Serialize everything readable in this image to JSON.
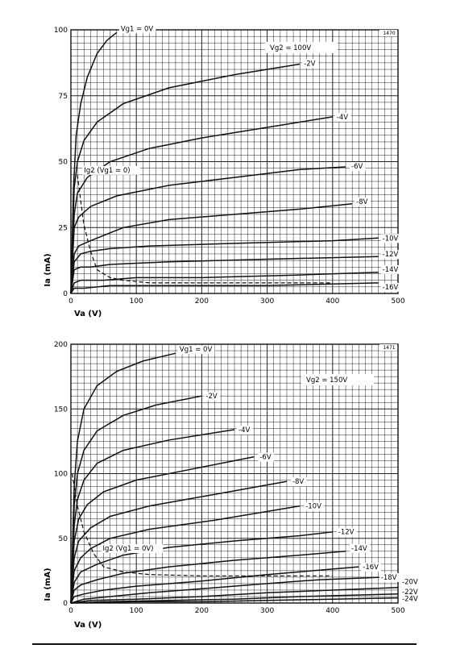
{
  "chart_data": [
    {
      "type": "line",
      "figure_number": "1470",
      "xlabel": "Va (V)",
      "ylabel": "Ia (mA)",
      "xlim": [
        0,
        500
      ],
      "ylim": [
        0,
        100
      ],
      "x_ticks": [
        0,
        100,
        200,
        300,
        400,
        500
      ],
      "y_ticks": [
        0,
        25,
        50,
        75,
        100
      ],
      "grid": true,
      "annotation_condition": "Vg2 = 100V",
      "series": [
        {
          "name": "Vg1 = 0V",
          "label": "Vg1 = 0V",
          "dashed": false,
          "points": [
            [
              0,
              0
            ],
            [
              4,
              40
            ],
            [
              8,
              60
            ],
            [
              15,
              72
            ],
            [
              25,
              82
            ],
            [
              40,
              91
            ],
            [
              55,
              96
            ],
            [
              70,
              99
            ]
          ]
        },
        {
          "name": "-2V",
          "label": "-2V",
          "dashed": false,
          "points": [
            [
              0,
              0
            ],
            [
              5,
              40
            ],
            [
              10,
              50
            ],
            [
              20,
              58
            ],
            [
              40,
              65
            ],
            [
              80,
              72
            ],
            [
              150,
              78
            ],
            [
              250,
              83
            ],
            [
              350,
              87
            ]
          ]
        },
        {
          "name": "-4V",
          "label": "-4V",
          "dashed": false,
          "points": [
            [
              0,
              0
            ],
            [
              5,
              30
            ],
            [
              10,
              38
            ],
            [
              25,
              44
            ],
            [
              60,
              50
            ],
            [
              120,
              55
            ],
            [
              200,
              59
            ],
            [
              300,
              63
            ],
            [
              400,
              67
            ]
          ]
        },
        {
          "name": "-6V",
          "label": "-6V",
          "dashed": false,
          "points": [
            [
              0,
              0
            ],
            [
              5,
              25
            ],
            [
              12,
              29
            ],
            [
              30,
              33
            ],
            [
              70,
              37
            ],
            [
              150,
              41
            ],
            [
              250,
              44
            ],
            [
              350,
              47
            ],
            [
              420,
              48
            ]
          ]
        },
        {
          "name": "-8V",
          "label": "-8V",
          "dashed": false,
          "points": [
            [
              0,
              0
            ],
            [
              5,
              15
            ],
            [
              12,
              18
            ],
            [
              30,
              20
            ],
            [
              80,
              25
            ],
            [
              150,
              28
            ],
            [
              250,
              30
            ],
            [
              350,
              32
            ],
            [
              430,
              34
            ]
          ]
        },
        {
          "name": "-10V",
          "label": "-10V",
          "dashed": false,
          "points": [
            [
              0,
              0
            ],
            [
              5,
              12
            ],
            [
              15,
              15
            ],
            [
              30,
              16
            ],
            [
              60,
              17
            ],
            [
              120,
              18
            ],
            [
              250,
              19
            ],
            [
              400,
              20
            ],
            [
              470,
              21
            ]
          ]
        },
        {
          "name": "-12V",
          "label": "-12V",
          "dashed": false,
          "points": [
            [
              0,
              0
            ],
            [
              5,
              9
            ],
            [
              15,
              10
            ],
            [
              30,
              10
            ],
            [
              60,
              11
            ],
            [
              150,
              12
            ],
            [
              300,
              13
            ],
            [
              470,
              14
            ]
          ]
        },
        {
          "name": "-14V",
          "label": "-14V",
          "dashed": false,
          "points": [
            [
              0,
              0
            ],
            [
              5,
              4
            ],
            [
              15,
              5
            ],
            [
              50,
              5
            ],
            [
              100,
              6
            ],
            [
              200,
              6
            ],
            [
              350,
              7
            ],
            [
              470,
              8
            ]
          ]
        },
        {
          "name": "-16V",
          "label": "-16V",
          "dashed": false,
          "points": [
            [
              0,
              0
            ],
            [
              5,
              2
            ],
            [
              20,
              2
            ],
            [
              60,
              3
            ],
            [
              150,
              3
            ],
            [
              300,
              3
            ],
            [
              470,
              4
            ]
          ]
        },
        {
          "name": "Ig2 (Vg1 = 0)",
          "label": "Ig2 (Vg1 = 0)",
          "dashed": true,
          "points": [
            [
              10,
              45
            ],
            [
              15,
              35
            ],
            [
              20,
              26
            ],
            [
              30,
              16
            ],
            [
              40,
              9
            ],
            [
              60,
              6
            ],
            [
              80,
              5
            ],
            [
              120,
              4
            ],
            [
              200,
              4
            ],
            [
              300,
              4
            ],
            [
              400,
              4
            ]
          ]
        }
      ]
    },
    {
      "type": "line",
      "figure_number": "1471",
      "xlabel": "Va (V)",
      "ylabel": "Ia (mA)",
      "xlim": [
        0,
        500
      ],
      "ylim": [
        0,
        200
      ],
      "x_ticks": [
        0,
        100,
        200,
        300,
        400,
        500
      ],
      "y_ticks": [
        0,
        50,
        100,
        150,
        200
      ],
      "grid": true,
      "annotation_condition": "Vg2 = 150V",
      "series": [
        {
          "name": "Vg1 = 0V",
          "label": "Vg1 = 0V",
          "dashed": false,
          "points": [
            [
              0,
              0
            ],
            [
              5,
              90
            ],
            [
              10,
              125
            ],
            [
              20,
              150
            ],
            [
              40,
              168
            ],
            [
              70,
              179
            ],
            [
              110,
              187
            ],
            [
              160,
              193
            ]
          ]
        },
        {
          "name": "-2V",
          "label": "-2V",
          "dashed": false,
          "points": [
            [
              0,
              0
            ],
            [
              5,
              75
            ],
            [
              10,
              100
            ],
            [
              20,
              118
            ],
            [
              40,
              133
            ],
            [
              80,
              145
            ],
            [
              130,
              153
            ],
            [
              200,
              160
            ]
          ]
        },
        {
          "name": "-4V",
          "label": "-4V",
          "dashed": false,
          "points": [
            [
              0,
              0
            ],
            [
              5,
              60
            ],
            [
              10,
              80
            ],
            [
              20,
              95
            ],
            [
              40,
              108
            ],
            [
              80,
              118
            ],
            [
              150,
              126
            ],
            [
              250,
              134
            ]
          ]
        },
        {
          "name": "-6V",
          "label": "-6V",
          "dashed": false,
          "points": [
            [
              0,
              0
            ],
            [
              5,
              48
            ],
            [
              12,
              65
            ],
            [
              25,
              76
            ],
            [
              50,
              86
            ],
            [
              100,
              95
            ],
            [
              180,
              103
            ],
            [
              280,
              113
            ]
          ]
        },
        {
          "name": "-8V",
          "label": "-8V",
          "dashed": false,
          "points": [
            [
              0,
              0
            ],
            [
              5,
              35
            ],
            [
              12,
              48
            ],
            [
              30,
              58
            ],
            [
              60,
              67
            ],
            [
              120,
              75
            ],
            [
              220,
              84
            ],
            [
              330,
              94
            ]
          ]
        },
        {
          "name": "-10V",
          "label": "-10V",
          "dashed": false,
          "points": [
            [
              0,
              0
            ],
            [
              5,
              25
            ],
            [
              15,
              35
            ],
            [
              30,
              42
            ],
            [
              60,
              50
            ],
            [
              120,
              57
            ],
            [
              220,
              64
            ],
            [
              350,
              75
            ]
          ]
        },
        {
          "name": "-12V",
          "label": "-12V",
          "dashed": false,
          "points": [
            [
              0,
              0
            ],
            [
              5,
              16
            ],
            [
              15,
              24
            ],
            [
              40,
              30
            ],
            [
              80,
              37
            ],
            [
              150,
              43
            ],
            [
              250,
              48
            ],
            [
              350,
              52
            ],
            [
              400,
              55
            ]
          ]
        },
        {
          "name": "-14V",
          "label": "-14V",
          "dashed": false,
          "points": [
            [
              0,
              0
            ],
            [
              5,
              10
            ],
            [
              15,
              14
            ],
            [
              40,
              18
            ],
            [
              80,
              23
            ],
            [
              150,
              28
            ],
            [
              250,
              33
            ],
            [
              350,
              37
            ],
            [
              420,
              40
            ]
          ]
        },
        {
          "name": "-16V",
          "label": "-16V",
          "dashed": false,
          "points": [
            [
              0,
              0
            ],
            [
              5,
              5
            ],
            [
              20,
              7
            ],
            [
              50,
              10
            ],
            [
              100,
              13
            ],
            [
              200,
              17
            ],
            [
              300,
              22
            ],
            [
              440,
              28
            ]
          ]
        },
        {
          "name": "-18V",
          "label": "-18V",
          "dashed": false,
          "points": [
            [
              0,
              0
            ],
            [
              20,
              3
            ],
            [
              60,
              5
            ],
            [
              120,
              8
            ],
            [
              200,
              11
            ],
            [
              300,
              15
            ],
            [
              380,
              18
            ],
            [
              480,
              20
            ]
          ]
        },
        {
          "name": "-20V",
          "label": "-20V",
          "dashed": false,
          "points": [
            [
              0,
              0
            ],
            [
              30,
              2
            ],
            [
              100,
              3
            ],
            [
              200,
              5
            ],
            [
              300,
              8
            ],
            [
              400,
              10
            ],
            [
              500,
              12
            ]
          ]
        },
        {
          "name": "-22V",
          "label": "-22V",
          "dashed": false,
          "points": [
            [
              0,
              0
            ],
            [
              50,
              1
            ],
            [
              150,
              2
            ],
            [
              250,
              3
            ],
            [
              350,
              5
            ],
            [
              500,
              7
            ]
          ]
        },
        {
          "name": "-24V",
          "label": "-24V",
          "dashed": false,
          "points": [
            [
              0,
              0
            ],
            [
              100,
              1
            ],
            [
              200,
              1
            ],
            [
              300,
              2
            ],
            [
              400,
              3
            ],
            [
              500,
              4
            ]
          ]
        },
        {
          "name": "Ig2 (Vg1 = 0V)",
          "label": "Ig2 (Vg1 = 0V)",
          "dashed": true,
          "points": [
            [
              2,
              100
            ],
            [
              5,
              90
            ],
            [
              10,
              75
            ],
            [
              20,
              55
            ],
            [
              35,
              38
            ],
            [
              50,
              28
            ],
            [
              80,
              24
            ],
            [
              120,
              22
            ],
            [
              200,
              21
            ],
            [
              300,
              21
            ],
            [
              400,
              21
            ]
          ]
        }
      ]
    }
  ]
}
